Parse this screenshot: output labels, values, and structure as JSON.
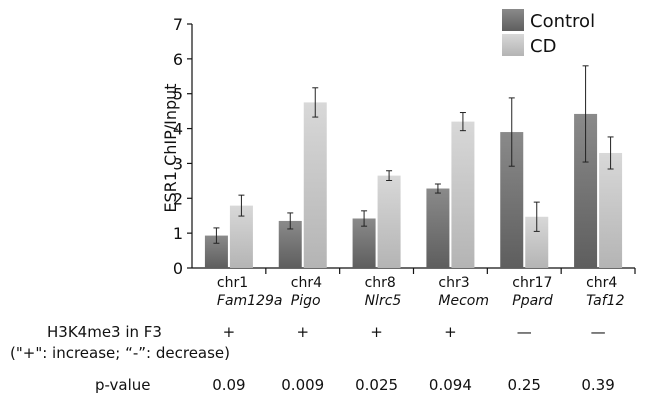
{
  "chart_data": {
    "type": "bar",
    "ylabel": "ESR1 ChIP/Input",
    "ylim": [
      0,
      7
    ],
    "yticks": [
      0,
      1,
      2,
      3,
      4,
      5,
      6,
      7
    ],
    "categories": [
      {
        "chr": "chr1",
        "gene": "Fam129a"
      },
      {
        "chr": "chr4",
        "gene": "Pigo"
      },
      {
        "chr": "chr8",
        "gene": "Nlrc5"
      },
      {
        "chr": "chr3",
        "gene": "Mecom"
      },
      {
        "chr": "chr17",
        "gene": "Ppard"
      },
      {
        "chr": "chr4",
        "gene": "Taf12"
      }
    ],
    "series": [
      {
        "name": "Control",
        "color": "#7a7a7a",
        "values": [
          0.93,
          1.35,
          1.42,
          2.28,
          3.9,
          4.42
        ],
        "errors": [
          0.22,
          0.23,
          0.22,
          0.13,
          0.98,
          1.38
        ]
      },
      {
        "name": "CD",
        "color": "#c8c8c8",
        "values": [
          1.79,
          4.75,
          2.65,
          4.2,
          1.47,
          3.3
        ],
        "errors": [
          0.3,
          0.42,
          0.14,
          0.26,
          0.42,
          0.46
        ]
      }
    ],
    "legend_position": "top-right"
  },
  "table": {
    "h3k4me3_label": "H3K4me3 in F3",
    "h3k4me3_note": "(\"+\": increase; “-”: decrease)",
    "h3k4me3_values": [
      "+",
      "+",
      "+",
      "+",
      "—",
      "—"
    ],
    "pvalue_label": "p-value",
    "pvalues": [
      "0.09",
      "0.009",
      "0.025",
      "0.094",
      "0.25",
      "0.39"
    ]
  }
}
